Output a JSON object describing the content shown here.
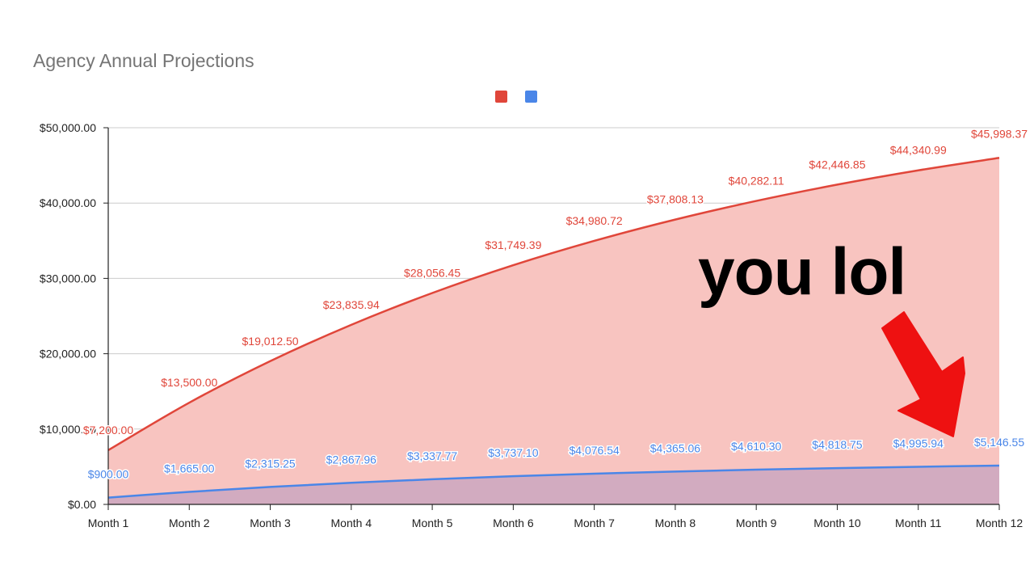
{
  "chart_data": {
    "type": "area",
    "title": "Agency Annual Projections",
    "xlabel": "",
    "ylabel": "",
    "categories": [
      "Month 1",
      "Month 2",
      "Month 3",
      "Month 4",
      "Month 5",
      "Month 6",
      "Month 7",
      "Month 8",
      "Month 9",
      "Month 10",
      "Month 11",
      "Month 12"
    ],
    "ylim": [
      0,
      50000
    ],
    "y_ticks": [
      {
        "value": 0,
        "label": "$0.00"
      },
      {
        "value": 10000,
        "label": "$10,000.00"
      },
      {
        "value": 20000,
        "label": "$20,000.00"
      },
      {
        "value": 30000,
        "label": "$30,000.00"
      },
      {
        "value": 40000,
        "label": "$40,000.00"
      },
      {
        "value": 50000,
        "label": "$50,000.00"
      }
    ],
    "grid": true,
    "legend_position": "top-center",
    "series": [
      {
        "color": "#e0463a",
        "fill": "#f8c4c0",
        "values": [
          7200.0,
          13500.0,
          19012.5,
          23835.94,
          28056.45,
          31749.39,
          34980.72,
          37808.13,
          40282.11,
          42446.85,
          44340.99,
          45998.37
        ],
        "labels": [
          "$7,200.00",
          "$13,500.00",
          "$19,012.50",
          "$23,835.94",
          "$28,056.45",
          "$31,749.39",
          "$34,980.72",
          "$37,808.13",
          "$40,282.11",
          "$42,446.85",
          "$44,340.99",
          "$45,998.37"
        ]
      },
      {
        "color": "#4a86e8",
        "fill": "#d2abc0",
        "values": [
          900.0,
          1665.0,
          2315.25,
          2867.96,
          3337.77,
          3737.1,
          4076.54,
          4365.06,
          4610.3,
          4818.75,
          4995.94,
          5146.55
        ],
        "labels": [
          "$900.00",
          "$1,665.00",
          "$2,315.25",
          "$2,867.96",
          "$3,337.77",
          "$3,737.10",
          "$4,076.54",
          "$4,365.06",
          "$4,610.30",
          "$4,818.75",
          "$4,995.94",
          "$5,146.55"
        ]
      }
    ],
    "annotation": {
      "text": "you lol",
      "arrow_color": "#ee1111",
      "arrow_points_to": "Month 12"
    }
  }
}
